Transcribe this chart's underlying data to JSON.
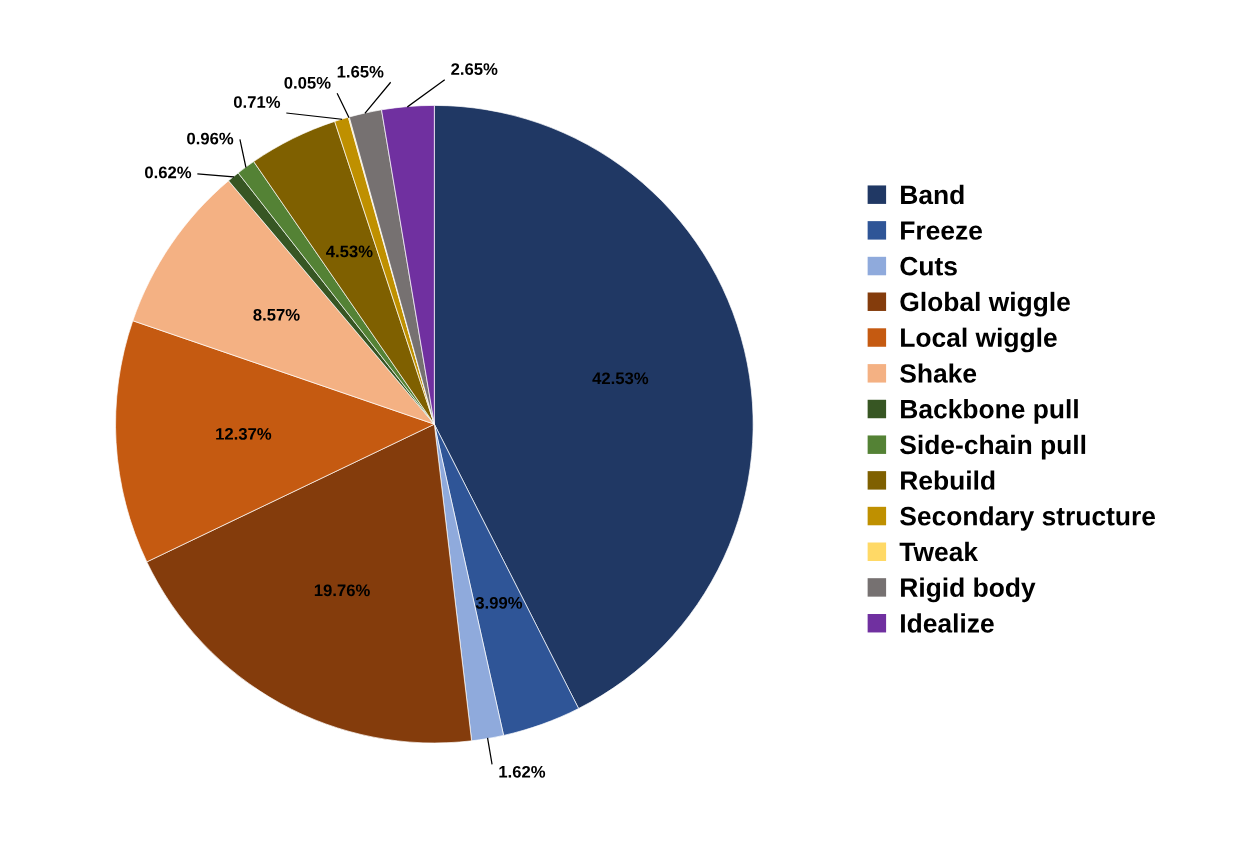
{
  "chart_data": {
    "type": "pie",
    "categories": [
      "Band",
      "Freeze",
      "Cuts",
      "Global wiggle",
      "Local wiggle",
      "Shake",
      "Backbone pull",
      "Side-chain pull",
      "Rebuild",
      "Secondary structure",
      "Tweak",
      "Rigid body",
      "Idealize"
    ],
    "values": [
      42.53,
      3.99,
      1.62,
      19.76,
      12.37,
      8.57,
      0.62,
      0.96,
      4.53,
      0.71,
      0.05,
      1.65,
      2.65
    ],
    "value_labels": [
      "42.53%",
      "3.99%",
      "1.62%",
      "19.76%",
      "12.37%",
      "8.57%",
      "0.62%",
      "0.96%",
      "4.53%",
      "0.71%",
      "0.05%",
      "1.65%",
      "2.65%"
    ],
    "colors": [
      "#203864",
      "#2f5597",
      "#8faadc",
      "#843c0c",
      "#c55a11",
      "#f4b183",
      "#375623",
      "#548235",
      "#7f6000",
      "#bf9000",
      "#ffd966",
      "#767171",
      "#7030a0"
    ],
    "legend": "right"
  }
}
